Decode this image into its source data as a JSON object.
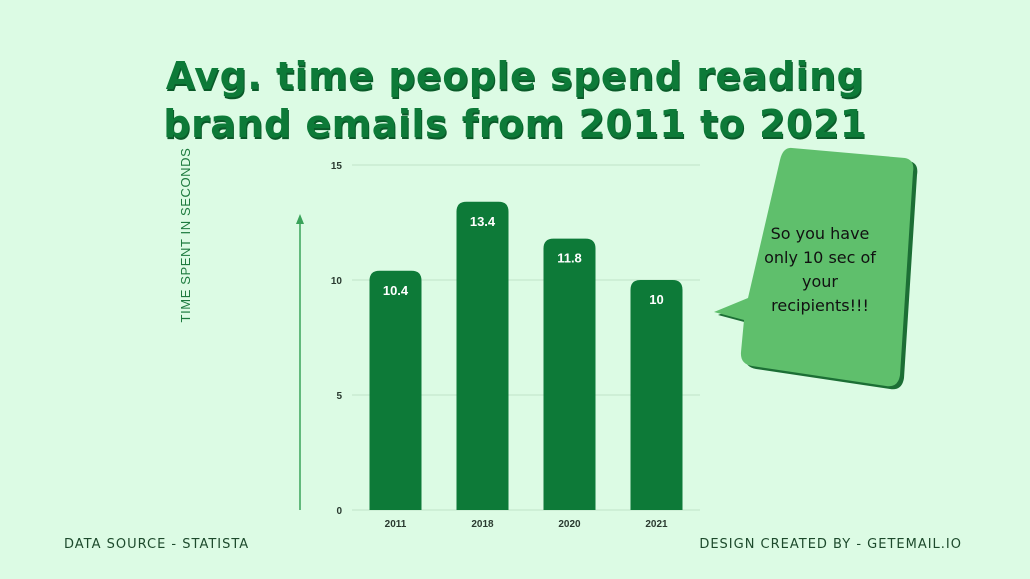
{
  "title_line1": "Avg. time people spend reading",
  "title_line2": "brand emails from 2011 to 2021",
  "chart_data": {
    "type": "bar",
    "title": "Avg. time people spend reading brand emails from 2011 to 2021",
    "categories": [
      "2011",
      "2018",
      "2020",
      "2021"
    ],
    "values": [
      10.4,
      13.4,
      11.8,
      10
    ],
    "data_labels": [
      "10.4",
      "13.4",
      "11.8",
      "10"
    ],
    "xlabel": "",
    "ylabel": "TIME SPENT IN SECONDS",
    "ylim": [
      0,
      15
    ],
    "yticks": [
      0,
      5,
      10,
      15
    ],
    "grid": true,
    "bar_color": "#0d7a38"
  },
  "callout_text": "So you have only 10 sec of your recipients!!!",
  "callout_color": "#5fbf6c",
  "footer_left": "DATA SOURCE - STATISTA",
  "footer_right": "DESIGN CREATED BY - GETEMAIL.IO"
}
